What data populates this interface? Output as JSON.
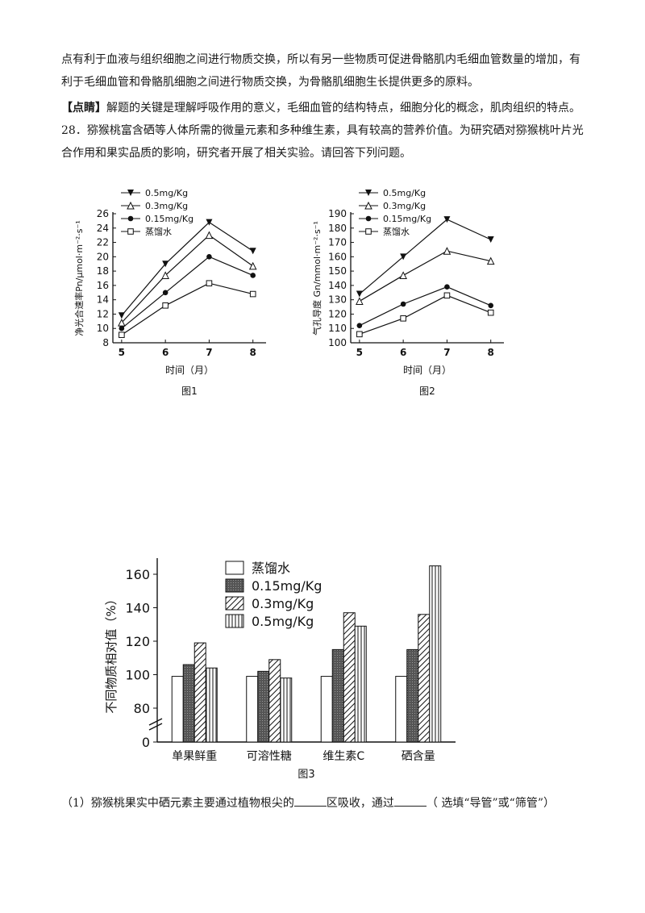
{
  "text": {
    "para1_line1": "点有利于血液与组织细胞之间进行物质交换，所以有另一些物质可促进骨骼肌内毛细血管数量的增加，有",
    "para1_line2": "利于毛细血管和骨骼肌细胞之间进行物质交换，为骨骼肌细胞生长提供更多的原料。",
    "tip_label": "【点睛】",
    "tip_text": "解题的关键是理解呼吸作用的意义，毛细血管的结构特点，细胞分化的概念，肌肉组织的特点。",
    "q28_line1": "28．猕猴桃富含硒等人体所需的微量元素和多种维生素，具有较高的营养价值。为研究硒对猕猴桃叶片光",
    "q28_line2": "合作用和果实品质的影响，研究者开展了相关实验。请回答下列问题。",
    "q1_part1": "（1）猕猴桃果实中硒元素主要通过植物根尖的",
    "q1_part2": "区吸收，通过",
    "q1_part3": "（ 选填“导管”或“筛管”）"
  },
  "chart_data": [
    {
      "type": "line",
      "caption": "图1",
      "xlabel": "时间（月）",
      "ylabel": "净光合速率Pn/μmol·m⁻²·s⁻¹",
      "x": [
        5,
        6,
        7,
        8
      ],
      "ylim": [
        8,
        26
      ],
      "yticks": [
        8,
        10,
        12,
        14,
        16,
        18,
        20,
        22,
        24,
        26
      ],
      "legend": "top-left",
      "series": [
        {
          "name": "0.5mg/Kg",
          "marker": "triangle-down-filled",
          "values": [
            11.8,
            19.0,
            24.8,
            20.8
          ]
        },
        {
          "name": "0.3mg/Kg",
          "marker": "triangle-up-open",
          "values": [
            10.8,
            17.4,
            23.0,
            18.7
          ]
        },
        {
          "name": "0.15mg/Kg",
          "marker": "circle-filled",
          "values": [
            10.0,
            15.0,
            20.0,
            17.4
          ]
        },
        {
          "name": "蒸馏水",
          "marker": "square-open",
          "values": [
            9.1,
            13.2,
            16.3,
            14.8
          ]
        }
      ]
    },
    {
      "type": "line",
      "caption": "图2",
      "xlabel": "时间（月）",
      "ylabel": "气孔导度 Gn/mmol·m⁻²·s⁻¹",
      "x": [
        5,
        6,
        7,
        8
      ],
      "ylim": [
        100,
        190
      ],
      "yticks": [
        100,
        110,
        120,
        130,
        140,
        150,
        160,
        170,
        180,
        190
      ],
      "legend": "top-left",
      "series": [
        {
          "name": "0.5mg/Kg",
          "marker": "triangle-down-filled",
          "values": [
            134,
            160,
            186,
            172
          ]
        },
        {
          "name": "0.3mg/Kg",
          "marker": "triangle-up-open",
          "values": [
            129,
            147,
            164,
            157
          ]
        },
        {
          "name": "0.15mg/Kg",
          "marker": "circle-filled",
          "values": [
            112,
            127,
            139,
            126
          ]
        },
        {
          "name": "蒸馏水",
          "marker": "square-open",
          "values": [
            106,
            117,
            133,
            121
          ]
        }
      ]
    },
    {
      "type": "bar",
      "caption": "图3",
      "ylabel": "不同物质相对值（%）",
      "categories": [
        "单果鲜重",
        "可溶性糖",
        "维生素C",
        "硒含量"
      ],
      "ylim": [
        0,
        165
      ],
      "axis_break": [
        0,
        80
      ],
      "yticks": [
        0,
        80,
        100,
        120,
        140,
        160
      ],
      "legend": "top-left",
      "series": [
        {
          "name": "蒸馏水",
          "pattern": "white",
          "values": [
            99,
            99,
            99,
            99
          ]
        },
        {
          "name": "0.15mg/Kg",
          "pattern": "dark-gray",
          "values": [
            106,
            102,
            115,
            115
          ]
        },
        {
          "name": "0.3mg/Kg",
          "pattern": "diagonal-hatch",
          "values": [
            119,
            109,
            137,
            136
          ]
        },
        {
          "name": "0.5mg/Kg",
          "pattern": "vertical-stripe",
          "values": [
            104,
            98,
            129,
            165
          ]
        }
      ]
    }
  ]
}
